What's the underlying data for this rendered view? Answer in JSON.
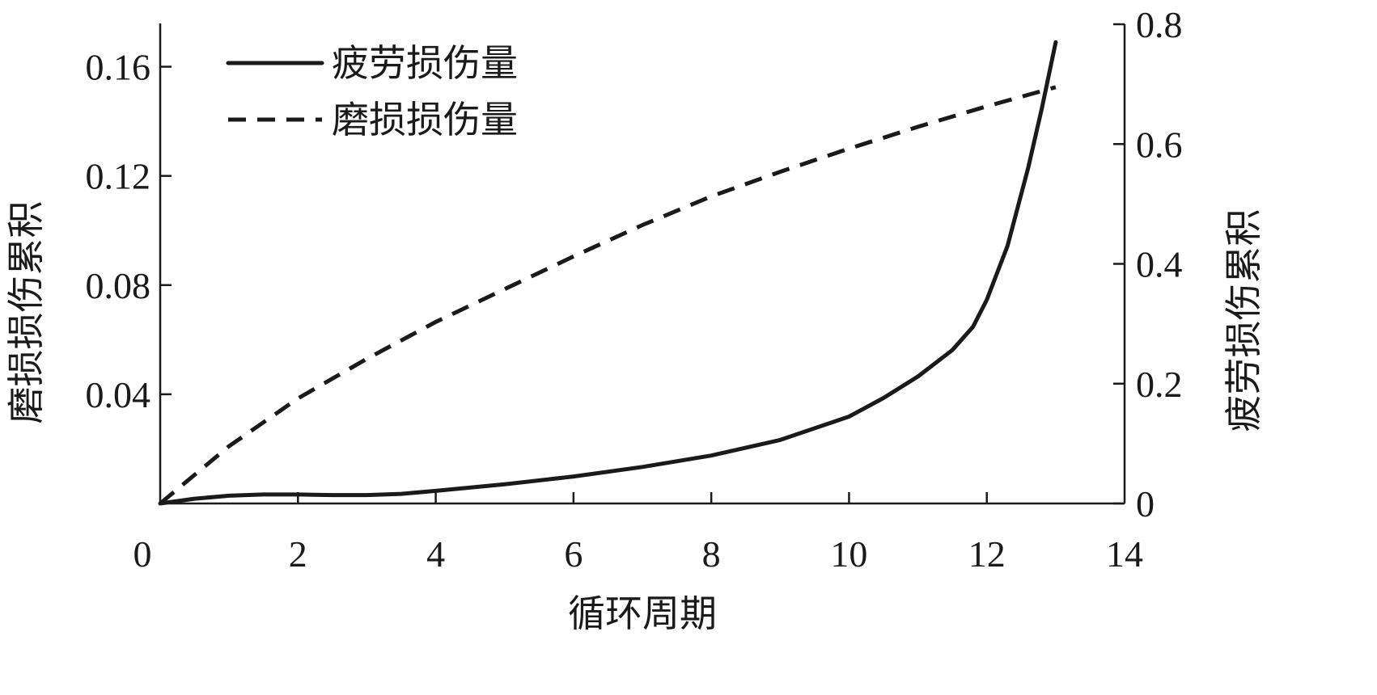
{
  "chart_data": {
    "type": "line",
    "title": "",
    "xlabel": "循环周期",
    "ylabel_left": "磨损损伤累积",
    "ylabel_right": "疲劳损伤累积",
    "xlim": [
      0,
      14
    ],
    "ylim_left": [
      0,
      0.18
    ],
    "ylim_right": [
      0,
      0.8
    ],
    "x_ticks": [
      0,
      2,
      4,
      6,
      8,
      10,
      12,
      14
    ],
    "x_tick_labels": [
      "0",
      "2",
      "4",
      "6",
      "8",
      "10",
      "12",
      "14"
    ],
    "y_left_ticks": [
      0.04,
      0.08,
      0.12,
      0.16
    ],
    "y_left_tick_labels": [
      "0.04",
      "0.08",
      "0.12",
      "0.16"
    ],
    "y_right_ticks": [
      0,
      0.2,
      0.4,
      0.6,
      0.8
    ],
    "y_right_tick_labels": [
      "0",
      "0.2",
      "0.4",
      "0.6",
      "0.8"
    ],
    "grid": false,
    "legend_position": "top-left",
    "series": [
      {
        "name": "疲劳损伤量",
        "style": "solid",
        "axis": "right",
        "color": "#1a1a1a",
        "x": [
          0,
          0.5,
          1,
          1.5,
          2,
          2.5,
          3,
          3.5,
          4,
          5,
          6,
          7,
          8,
          9,
          10,
          10.5,
          11,
          11.5,
          11.8,
          12,
          12.3,
          12.6,
          12.8,
          13.0
        ],
        "y": [
          0,
          0.008,
          0.013,
          0.015,
          0.015,
          0.014,
          0.014,
          0.016,
          0.021,
          0.032,
          0.045,
          0.061,
          0.08,
          0.106,
          0.145,
          0.176,
          0.212,
          0.256,
          0.295,
          0.34,
          0.43,
          0.56,
          0.66,
          0.77
        ]
      },
      {
        "name": "磨损损伤量",
        "style": "dashed",
        "axis": "left",
        "color": "#1a1a1a",
        "x": [
          0,
          1,
          2,
          3,
          4,
          5,
          6,
          7,
          8,
          9,
          10,
          11,
          12,
          13
        ],
        "y": [
          0,
          0.021,
          0.0385,
          0.053,
          0.0665,
          0.0785,
          0.0905,
          0.102,
          0.1125,
          0.1215,
          0.13,
          0.138,
          0.1455,
          0.1525
        ]
      }
    ]
  }
}
